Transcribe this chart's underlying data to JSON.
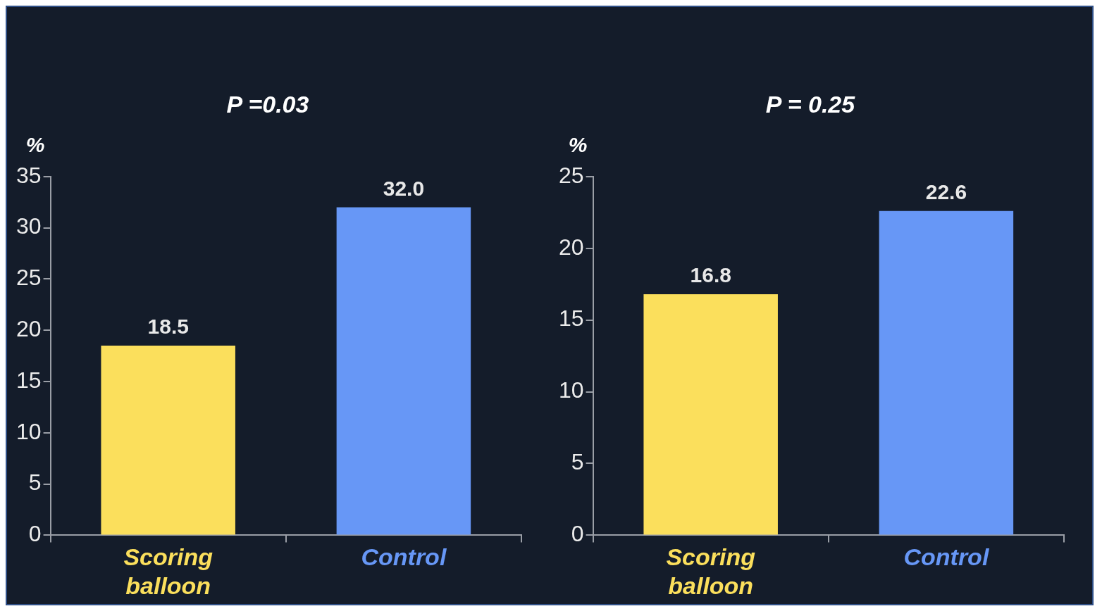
{
  "chart_data": [
    {
      "type": "bar",
      "title": "P =0.03",
      "ylabel": "%",
      "categories": [
        "Scoring balloon",
        "Control"
      ],
      "values": [
        18.5,
        32.0
      ],
      "colors": [
        "#fbdf5c",
        "#6797f6"
      ],
      "value_labels": [
        "18.5",
        "32.0"
      ],
      "ylim": [
        0,
        35
      ],
      "yticks": [
        0,
        5,
        10,
        15,
        20,
        25,
        30,
        35
      ]
    },
    {
      "type": "bar",
      "title": "P = 0.25",
      "ylabel": "%",
      "categories": [
        "Scoring balloon",
        "Control"
      ],
      "values": [
        16.8,
        22.6
      ],
      "colors": [
        "#fbdf5c",
        "#6797f6"
      ],
      "value_labels": [
        "16.8",
        "22.6"
      ],
      "ylim": [
        0,
        25
      ],
      "yticks": [
        0,
        5,
        10,
        15,
        20,
        25
      ]
    }
  ]
}
